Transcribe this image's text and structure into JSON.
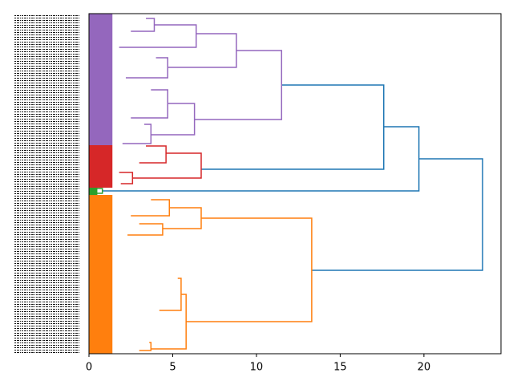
{
  "chart_data": {
    "type": "dendrogram",
    "xlim": [
      0,
      24.6
    ],
    "xticks": [
      0,
      5,
      10,
      15,
      20
    ],
    "ylim": [
      0,
      424
    ],
    "clusters": [
      {
        "color": "#9467bd",
        "y": [
          0,
          164
        ],
        "x": 1.4
      },
      {
        "color": "#d62728",
        "y": [
          164,
          217
        ],
        "x": 1.4
      },
      {
        "color": "#2ca02c",
        "y": [
          217,
          226
        ],
        "x": 0.5
      },
      {
        "color": "#ff7f0e",
        "y": [
          226,
          424
        ],
        "x": 1.4
      }
    ],
    "links": [
      {
        "color": "#1f77b4",
        "x": [
          19.7,
          23.5,
          23.5,
          13.3
        ],
        "y": [
          181,
          181,
          320,
          320
        ]
      },
      {
        "color": "#1f77b4",
        "x": [
          17.6,
          19.7,
          19.7,
          0.8
        ],
        "y": [
          141,
          141,
          221,
          221
        ]
      },
      {
        "color": "#1f77b4",
        "x": [
          11.5,
          17.6,
          17.6,
          6.7
        ],
        "y": [
          89,
          89,
          194,
          194
        ]
      },
      {
        "color": "#9467bd",
        "x": [
          8.8,
          11.5,
          11.5,
          6.3
        ],
        "y": [
          46,
          46,
          132,
          132
        ]
      },
      {
        "color": "#9467bd",
        "x": [
          6.4,
          8.8,
          8.8,
          4.7
        ],
        "y": [
          25,
          25,
          67,
          67
        ]
      },
      {
        "color": "#9467bd",
        "x": [
          3.9,
          6.4,
          6.4,
          1.8
        ],
        "y": [
          14,
          14,
          42,
          42
        ]
      },
      {
        "color": "#9467bd",
        "x": [
          3.4,
          3.9,
          3.9,
          2.5
        ],
        "y": [
          6,
          6,
          22,
          22
        ]
      },
      {
        "color": "#9467bd",
        "x": [
          4.0,
          4.7,
          4.7,
          2.2
        ],
        "y": [
          55,
          55,
          80,
          80
        ]
      },
      {
        "color": "#9467bd",
        "x": [
          4.7,
          6.3,
          6.3,
          3.7
        ],
        "y": [
          112,
          112,
          151,
          151
        ]
      },
      {
        "color": "#9467bd",
        "x": [
          3.7,
          4.7,
          4.7,
          2.5
        ],
        "y": [
          95,
          95,
          130,
          130
        ]
      },
      {
        "color": "#9467bd",
        "x": [
          3.3,
          3.7,
          3.7,
          2.0
        ],
        "y": [
          138,
          138,
          162,
          162
        ]
      },
      {
        "color": "#d62728",
        "x": [
          4.6,
          6.7,
          6.7,
          2.6
        ],
        "y": [
          174,
          174,
          205,
          205
        ]
      },
      {
        "color": "#d62728",
        "x": [
          3.4,
          4.6,
          4.6,
          3.0
        ],
        "y": [
          165,
          165,
          186,
          186
        ]
      },
      {
        "color": "#d62728",
        "x": [
          1.8,
          2.6,
          2.6,
          1.9
        ],
        "y": [
          198,
          198,
          212,
          212
        ]
      },
      {
        "color": "#2ca02c",
        "x": [
          0.3,
          0.8,
          0.8,
          0.3
        ],
        "y": [
          218,
          218,
          224,
          224
        ]
      },
      {
        "color": "#ff7f0e",
        "x": [
          6.7,
          13.3,
          13.3,
          5.8
        ],
        "y": [
          255,
          255,
          384,
          384
        ]
      },
      {
        "color": "#ff7f0e",
        "x": [
          4.8,
          6.7,
          6.7,
          4.4
        ],
        "y": [
          242,
          242,
          268,
          268
        ]
      },
      {
        "color": "#ff7f0e",
        "x": [
          3.7,
          4.8,
          4.8,
          2.5
        ],
        "y": [
          232,
          232,
          252,
          252
        ]
      },
      {
        "color": "#ff7f0e",
        "x": [
          3.0,
          4.4,
          4.4,
          2.3
        ],
        "y": [
          262,
          262,
          276,
          276
        ]
      },
      {
        "color": "#ff7f0e",
        "x": [
          5.5,
          5.8,
          5.8,
          3.7
        ],
        "y": [
          350,
          350,
          418,
          418
        ]
      },
      {
        "color": "#ff7f0e",
        "x": [
          5.3,
          5.5,
          5.5,
          4.2
        ],
        "y": [
          330,
          330,
          370,
          370
        ]
      },
      {
        "color": "#ff7f0e",
        "x": [
          3.6,
          3.7,
          3.7,
          3.0
        ],
        "y": [
          410,
          410,
          420,
          420
        ]
      }
    ]
  }
}
